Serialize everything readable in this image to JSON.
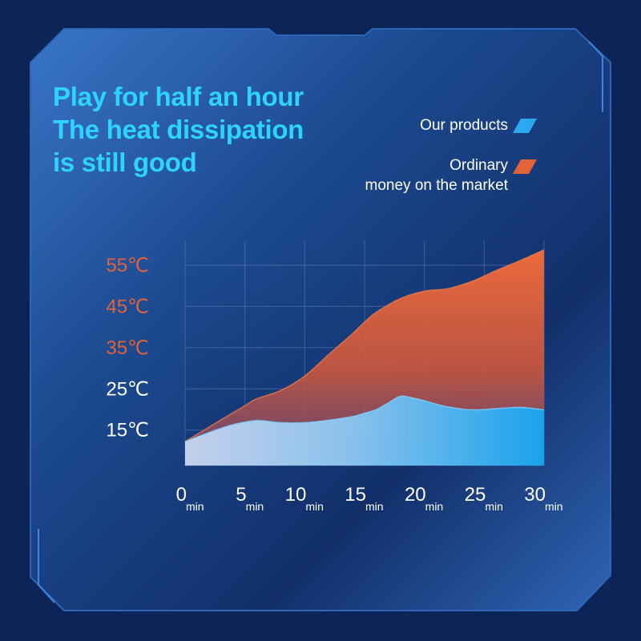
{
  "headline": {
    "line1": "Play for half an hour",
    "line2": "The heat dissipation",
    "line3": "is still good"
  },
  "legend": [
    {
      "label_lines": [
        "Our products"
      ],
      "color": "#2aa8f0"
    },
    {
      "label_lines": [
        "Ordinary",
        "money on the market"
      ],
      "color": "#e2623a"
    }
  ],
  "colors": {
    "background": "#0d2556",
    "panel": "#1b4a8c",
    "headline": "#2fd3ff",
    "hot_tick": "#e2623a",
    "cool_tick": "#ffffff",
    "grid": "#6f8fc4"
  },
  "chart_data": {
    "type": "area",
    "title": "",
    "xlabel": "",
    "ylabel": "",
    "x_ticks": [
      {
        "value": 0,
        "num": "0",
        "unit": "min"
      },
      {
        "value": 5,
        "num": "5",
        "unit": "min"
      },
      {
        "value": 10,
        "num": "10",
        "unit": "min"
      },
      {
        "value": 15,
        "num": "15",
        "unit": "min"
      },
      {
        "value": 20,
        "num": "20",
        "unit": "min"
      },
      {
        "value": 25,
        "num": "25",
        "unit": "min"
      },
      {
        "value": 30,
        "num": "30",
        "unit": "min"
      }
    ],
    "y_ticks": [
      {
        "value": 15,
        "label": "15℃",
        "tone": "cool"
      },
      {
        "value": 25,
        "label": "25℃",
        "tone": "cool"
      },
      {
        "value": 35,
        "label": "35℃",
        "tone": "hot"
      },
      {
        "value": 45,
        "label": "45℃",
        "tone": "hot"
      },
      {
        "value": 55,
        "label": "55℃",
        "tone": "hot"
      }
    ],
    "xlim": [
      0,
      30
    ],
    "ylim": [
      6.4,
      61
    ],
    "grid": true,
    "series": [
      {
        "name": "Ordinary money on the market",
        "color": "#e2623a",
        "x": [
          0,
          2,
          4,
          5,
          6,
          8,
          10,
          12,
          14,
          15,
          16,
          18,
          20,
          22,
          24,
          26,
          28,
          30
        ],
        "values": [
          12.2,
          15.7,
          19.2,
          20.9,
          22.6,
          24.6,
          28.1,
          33.3,
          38.4,
          41.2,
          43.6,
          46.9,
          48.7,
          49.3,
          51.1,
          53.7,
          56.1,
          58.7
        ]
      },
      {
        "name": "Our products",
        "color": "#2aa8f0",
        "x": [
          0,
          2,
          4,
          6,
          8,
          10,
          12,
          14,
          15,
          16,
          17,
          18,
          19,
          20,
          22,
          24,
          26,
          28,
          30
        ],
        "values": [
          12.2,
          14.4,
          16.3,
          17.3,
          16.8,
          16.8,
          17.4,
          18.3,
          19.1,
          20.0,
          21.6,
          23.2,
          22.8,
          22.1,
          20.6,
          19.9,
          20.2,
          20.5,
          19.9
        ]
      }
    ]
  }
}
